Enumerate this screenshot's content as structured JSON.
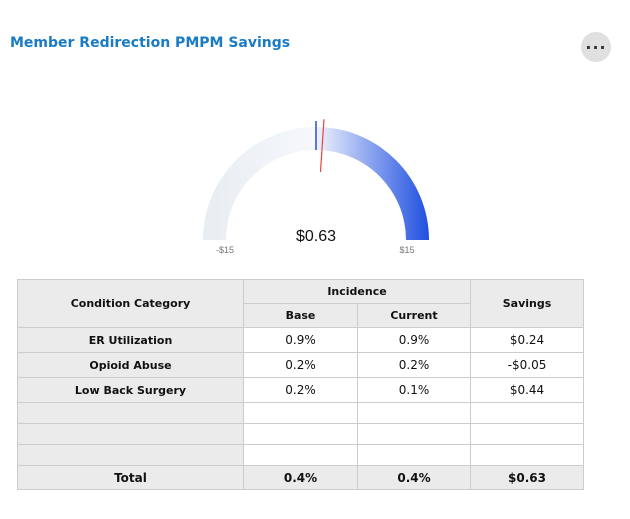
{
  "header": {
    "title": "Member Redirection PMPM Savings",
    "more_icon": "ellipsis-icon",
    "more_label": "···"
  },
  "gauge": {
    "value": 0.63,
    "value_label": "$0.63",
    "min": -15,
    "max": 15,
    "min_label": "-$15",
    "max_label": "$15",
    "baseline": 0,
    "colors": {
      "track": "#e8edf2",
      "fill_end": "#1f4fdf",
      "baseline_marker": "#2a4bd0",
      "needle": "#e8443a"
    }
  },
  "table": {
    "headers": {
      "category": "Condition Category",
      "incidence": "Incidence",
      "base": "Base",
      "current": "Current",
      "savings": "Savings"
    },
    "rows": [
      {
        "category": "ER Utilization",
        "base": "0.9%",
        "current": "0.9%",
        "savings": "$0.24"
      },
      {
        "category": "Opioid Abuse",
        "base": "0.2%",
        "current": "0.2%",
        "savings": "-$0.05"
      },
      {
        "category": "Low Back Surgery",
        "base": "0.2%",
        "current": "0.1%",
        "savings": "$0.44"
      },
      {
        "category": "",
        "base": "",
        "current": "",
        "savings": ""
      },
      {
        "category": "",
        "base": "",
        "current": "",
        "savings": ""
      },
      {
        "category": "",
        "base": "",
        "current": "",
        "savings": ""
      }
    ],
    "total": {
      "label": "Total",
      "base": "0.4%",
      "current": "0.4%",
      "savings": "$0.63"
    }
  }
}
